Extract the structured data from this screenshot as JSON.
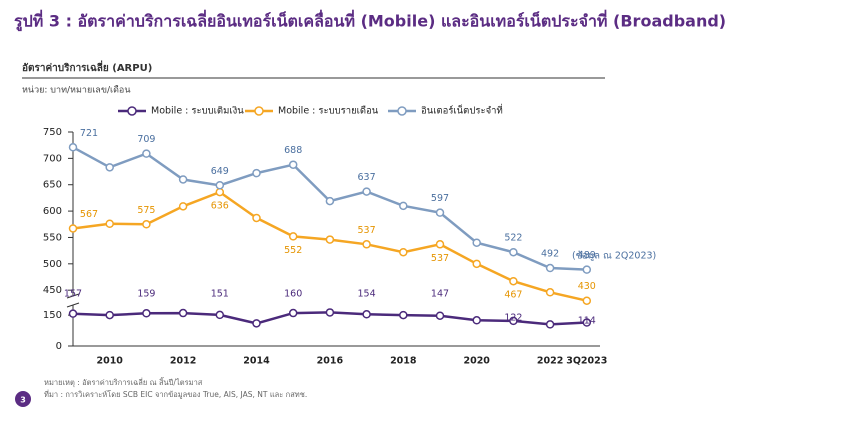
{
  "chart_data": {
    "type": "line",
    "title": "รูปที่ 3 : อัตราค่าบริการเฉลี่ยอินเทอร์เน็ตเคลื่อนที่ (Mobile) และอินเทอร์เน็ตประจำที่ (Broadband)",
    "subtitle": "อัตราค่าบริการเฉลี่ย (ARPU)",
    "unit_label": "หน่วย: บาท/หมายเลข/เดือน",
    "annotation": "(ข้อมูล ณ 2Q2023)",
    "categories": [
      null,
      "2010",
      null,
      "2012",
      null,
      "2014",
      null,
      "2016",
      null,
      "2018",
      null,
      "2020",
      null,
      "2022",
      "3Q2023"
    ],
    "ylim": [
      420,
      750
    ],
    "yticks": [
      450,
      500,
      550,
      600,
      650,
      700,
      750
    ],
    "y2lim": [
      0,
      170
    ],
    "y2ticks": [
      0,
      150
    ],
    "series": [
      {
        "name": "Mobile : ระบบเติมเงิน",
        "color": "#4b2a7b",
        "axis": "y2",
        "values": [
          157,
          150,
          159,
          160,
          151,
          110,
          160,
          163,
          154,
          150,
          147,
          125,
          122,
          105,
          114
        ],
        "value_labels": [
          "157",
          null,
          "159",
          null,
          "151",
          null,
          "160",
          null,
          "154",
          null,
          "147",
          null,
          "122",
          null,
          "114"
        ]
      },
      {
        "name": "Mobile : ระบบรายเดือน",
        "color": "#f5a623",
        "values": [
          567,
          576,
          575,
          609,
          636,
          587,
          552,
          546,
          537,
          522,
          537,
          500,
          467,
          446,
          430
        ],
        "value_labels": [
          "567",
          null,
          "575",
          null,
          "636",
          null,
          "552",
          null,
          "537",
          null,
          "537",
          null,
          "467",
          null,
          "430"
        ]
      },
      {
        "name": "อินเตอร์เน็ตประจำที่",
        "color": "#7f9cc0",
        "values": [
          721,
          683,
          709,
          660,
          649,
          672,
          688,
          619,
          637,
          610,
          597,
          540,
          522,
          492,
          489
        ],
        "value_labels": [
          "721",
          null,
          "709",
          null,
          "649",
          null,
          "688",
          null,
          "637",
          null,
          "597",
          null,
          "522",
          "492",
          "489"
        ]
      }
    ],
    "page_number": "3",
    "notes": [
      "หมายเหตุ : อัตราค่าบริการเฉลี่ย ณ สิ้นปี/ไตรมาส",
      "ที่มา : การวิเคราะห์โดย SCB EIC จากข้อมูลของ True, AIS, JAS, NT และ กสทช."
    ]
  }
}
